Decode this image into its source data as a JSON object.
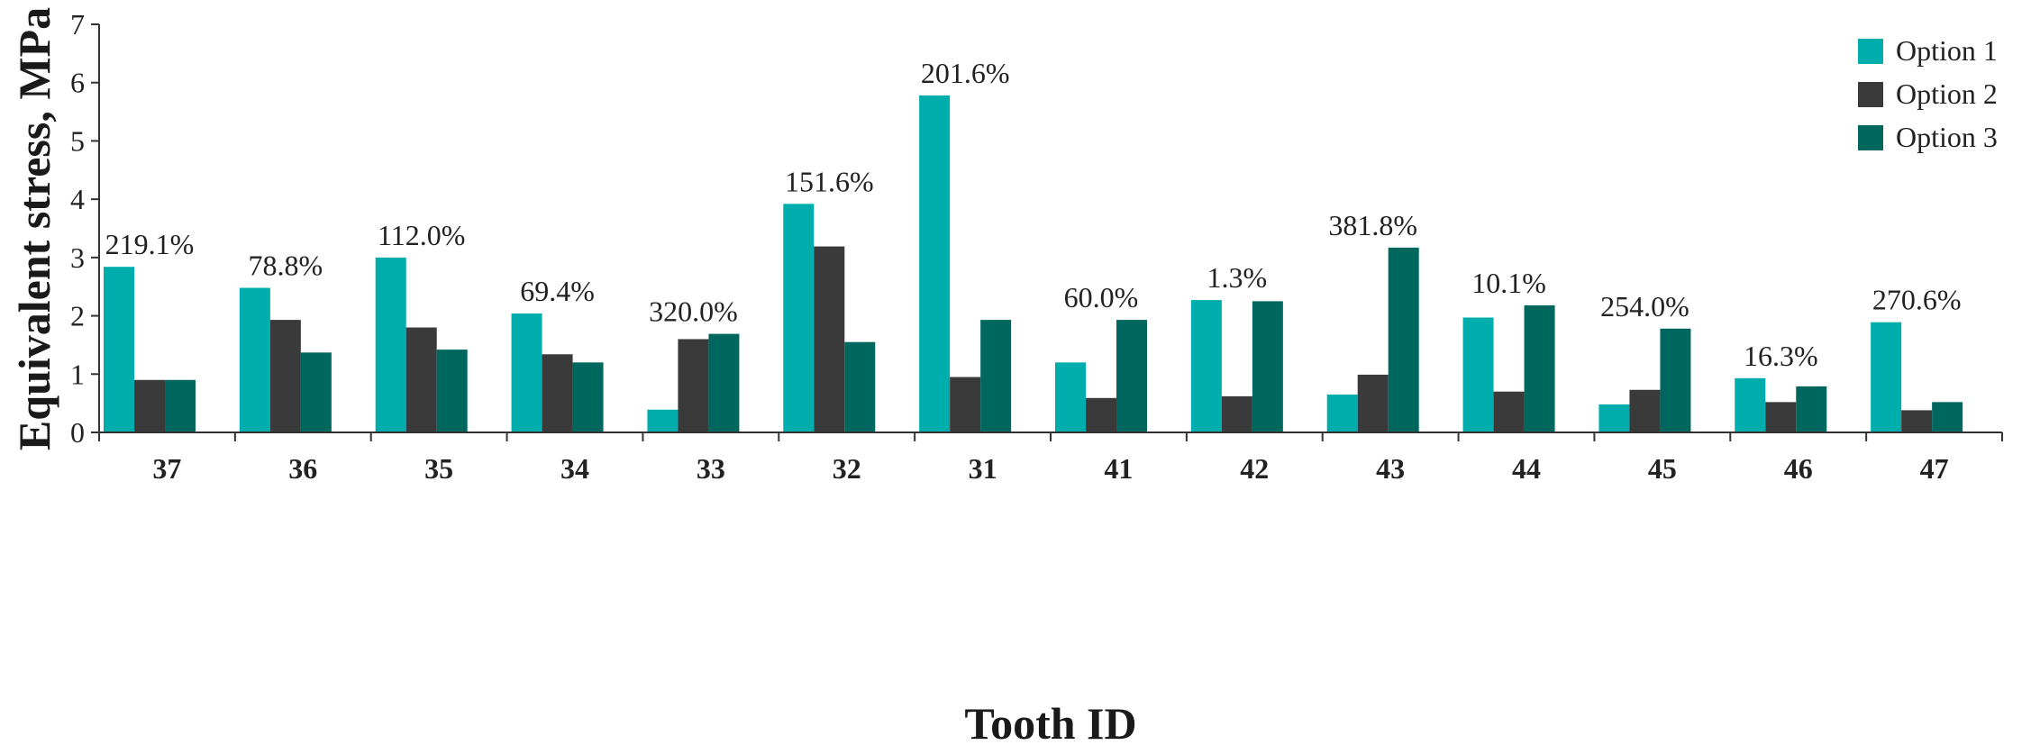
{
  "chart_data": {
    "type": "bar",
    "title": "",
    "xlabel": "Tooth ID",
    "ylabel": "Equivalent stress, MPa",
    "ylim": [
      0,
      7
    ],
    "yticks": [
      0,
      1,
      2,
      3,
      4,
      5,
      6,
      7
    ],
    "grid": false,
    "legend_position": "top-right",
    "categories": [
      "37",
      "36",
      "35",
      "34",
      "33",
      "32",
      "31",
      "41",
      "42",
      "43",
      "44",
      "45",
      "46",
      "47"
    ],
    "series": [
      {
        "name": "Option 1",
        "color": "#00adad",
        "values": [
          2.84,
          2.48,
          3.0,
          2.04,
          0.39,
          3.92,
          5.78,
          1.2,
          2.27,
          0.65,
          1.97,
          0.48,
          0.93,
          1.89
        ]
      },
      {
        "name": "Option 2",
        "color": "#3a3a3a",
        "values": [
          0.9,
          1.93,
          1.8,
          1.34,
          1.6,
          3.19,
          0.95,
          0.59,
          0.62,
          0.99,
          0.7,
          0.73,
          0.52,
          0.38
        ]
      },
      {
        "name": "Option 3",
        "color": "#00675e",
        "values": [
          0.9,
          1.37,
          1.42,
          1.2,
          1.69,
          1.55,
          1.93,
          1.93,
          2.25,
          3.17,
          2.18,
          1.78,
          0.79,
          0.52
        ]
      }
    ],
    "annotations": [
      "219.1%",
      "78.8%",
      "112.0%",
      "69.4%",
      "320.0%",
      "151.6%",
      "201.6%",
      "60.0%",
      "1.3%",
      "381.8%",
      "10.1%",
      "254.0%",
      "16.3%",
      "270.6%"
    ]
  }
}
